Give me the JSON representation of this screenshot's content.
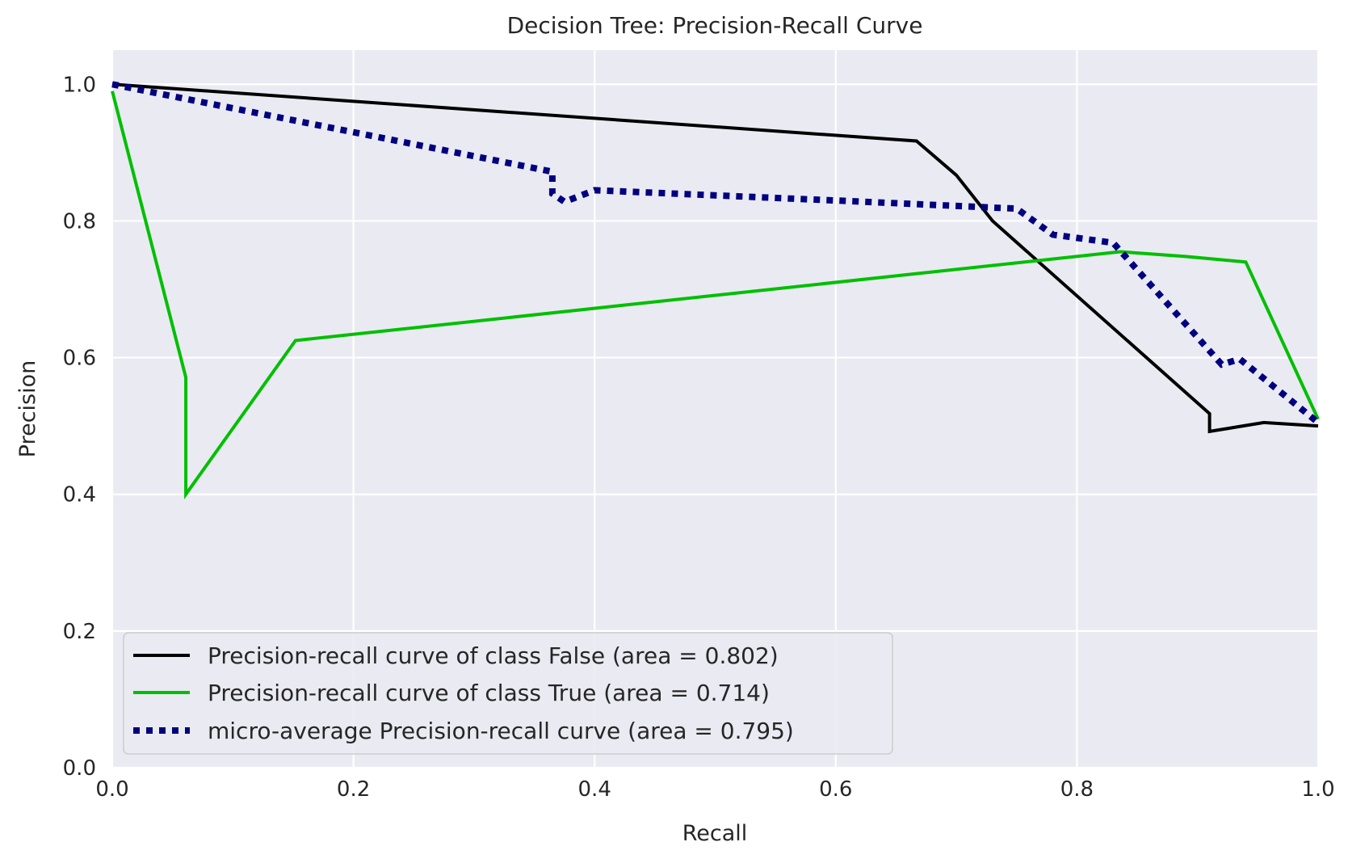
{
  "chart_data": {
    "type": "line",
    "title": "Decision Tree: Precision-Recall Curve",
    "xlabel": "Recall",
    "ylabel": "Precision",
    "xlim": [
      0,
      1
    ],
    "ylim": [
      0,
      1.05
    ],
    "xticks": [
      "0.0",
      "0.2",
      "0.4",
      "0.6",
      "0.8",
      "1.0"
    ],
    "yticks": [
      "0.0",
      "0.2",
      "0.4",
      "0.6",
      "0.8",
      "1.0"
    ],
    "grid": true,
    "background": "#eaeaf2",
    "legend_position": "lower-left",
    "series": [
      {
        "name": "Precision-recall curve of class False (area = 0.802)",
        "color": "#000000",
        "style": "solid",
        "x": [
          0.0,
          0.667,
          0.7,
          0.73,
          0.91,
          0.91,
          0.955,
          1.0
        ],
        "y": [
          1.0,
          0.917,
          0.867,
          0.8,
          0.518,
          0.492,
          0.505,
          0.5
        ]
      },
      {
        "name": "Precision-recall curve of class True (area = 0.714)",
        "color": "#00bf00",
        "style": "solid",
        "x": [
          0.0,
          0.061,
          0.061,
          0.152,
          0.836,
          0.89,
          0.94,
          1.0
        ],
        "y": [
          0.99,
          0.571,
          0.4,
          0.625,
          0.755,
          0.748,
          0.74,
          0.51
        ]
      },
      {
        "name": "micro-average Precision-recall curve (area = 0.795)",
        "color": "#000080",
        "style": "dotted",
        "x": [
          0.0,
          0.365,
          0.365,
          0.375,
          0.4,
          0.6,
          0.75,
          0.78,
          0.83,
          0.92,
          0.935,
          1.0
        ],
        "y": [
          1.0,
          0.872,
          0.84,
          0.828,
          0.845,
          0.83,
          0.818,
          0.78,
          0.768,
          0.59,
          0.598,
          0.505
        ]
      }
    ]
  }
}
